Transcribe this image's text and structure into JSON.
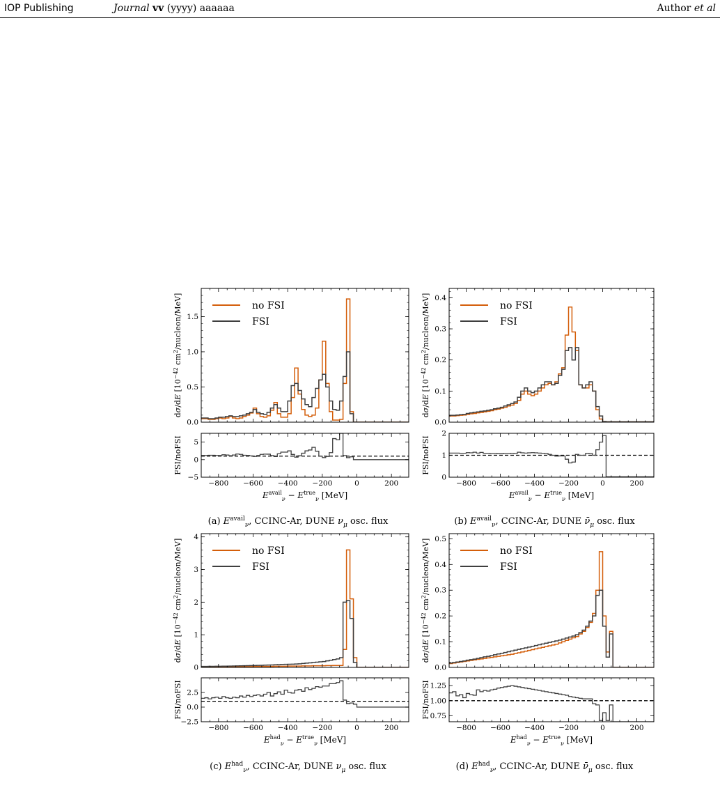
{
  "header": {
    "publisher": "IOP Publishing",
    "journal_name": "Journal",
    "journal_vol": "vv",
    "journal_rest": " (yyyy) aaaaaa",
    "author_name": "Author ",
    "author_etal": "et al"
  },
  "colors": {
    "nofsi": "#d45e0a",
    "fsi": "#3f3f3f",
    "ratio_line": "#000000"
  },
  "chart_data": [
    {
      "id": "a",
      "type": "line",
      "caption": "(a) E_ν^avail, CCINC-Ar, DUNE ν_μ osc. flux",
      "legend": [
        "no FSI",
        "FSI"
      ],
      "xlabel": "E_ν^avail − E_ν^true [MeV]",
      "ylabel": "dσ/dE [10^−42 cm²/nucleon/MeV]",
      "ratio_ylabel": "FSI/noFSI",
      "xlim": [
        -900,
        300
      ],
      "xticks": [
        -800,
        -600,
        -400,
        -200,
        0,
        200
      ],
      "ylim": [
        0,
        1.9
      ],
      "yticks": [
        0.0,
        0.5,
        1.0,
        1.5
      ],
      "ratio_ylim": [
        -5,
        7.5
      ],
      "ratio_yticks": [
        -5,
        0,
        5
      ],
      "bin_width": 20,
      "x": [
        -900,
        -880,
        -860,
        -840,
        -820,
        -800,
        -780,
        -760,
        -740,
        -720,
        -700,
        -680,
        -660,
        -640,
        -620,
        -600,
        -580,
        -560,
        -540,
        -520,
        -500,
        -480,
        -460,
        -440,
        -420,
        -400,
        -380,
        -360,
        -340,
        -320,
        -300,
        -280,
        -260,
        -240,
        -220,
        -200,
        -180,
        -160,
        -140,
        -120,
        -100,
        -80,
        -60,
        -40,
        -20,
        0,
        20,
        40,
        60,
        80,
        100,
        120,
        140,
        160,
        180,
        200,
        220,
        240,
        260,
        280
      ],
      "series": [
        {
          "name": "no FSI",
          "values": [
            0.05,
            0.05,
            0.04,
            0.04,
            0.05,
            0.06,
            0.05,
            0.06,
            0.08,
            0.06,
            0.05,
            0.06,
            0.08,
            0.1,
            0.13,
            0.2,
            0.12,
            0.08,
            0.07,
            0.09,
            0.17,
            0.28,
            0.12,
            0.07,
            0.07,
            0.12,
            0.35,
            0.77,
            0.4,
            0.18,
            0.1,
            0.08,
            0.1,
            0.2,
            0.6,
            1.15,
            0.55,
            0.15,
            0.03,
            0.03,
            0.04,
            0.55,
            1.75,
            0.15,
            0,
            0,
            0,
            0,
            0,
            0,
            0,
            0,
            0,
            0,
            0,
            0,
            0,
            0,
            0,
            0
          ]
        },
        {
          "name": "FSI",
          "values": [
            0.06,
            0.06,
            0.05,
            0.05,
            0.06,
            0.07,
            0.07,
            0.08,
            0.09,
            0.08,
            0.08,
            0.09,
            0.1,
            0.12,
            0.14,
            0.18,
            0.14,
            0.12,
            0.11,
            0.14,
            0.2,
            0.25,
            0.2,
            0.15,
            0.15,
            0.3,
            0.52,
            0.55,
            0.45,
            0.33,
            0.25,
            0.22,
            0.35,
            0.48,
            0.6,
            0.68,
            0.5,
            0.3,
            0.18,
            0.17,
            0.3,
            0.65,
            1.0,
            0.12,
            0,
            0,
            0,
            0,
            0,
            0,
            0,
            0,
            0,
            0,
            0,
            0,
            0,
            0,
            0,
            0
          ]
        }
      ],
      "ratio_values": [
        1.2,
        1.2,
        1.25,
        1.25,
        1.2,
        1.17,
        1.4,
        1.33,
        1.13,
        1.33,
        1.6,
        1.5,
        1.25,
        1.2,
        1.08,
        0.9,
        1.17,
        1.5,
        1.57,
        1.56,
        1.18,
        0.89,
        1.67,
        2.14,
        2.14,
        2.5,
        1.49,
        0.71,
        1.13,
        1.83,
        2.5,
        2.75,
        3.5,
        2.4,
        1,
        0.59,
        0.91,
        2,
        6,
        5.67,
        7.5,
        1.18,
        0.57,
        0.8,
        0,
        0,
        0,
        0,
        0,
        0,
        0,
        0,
        0,
        0,
        0,
        0,
        0,
        0,
        0,
        0
      ]
    },
    {
      "id": "b",
      "type": "line",
      "caption": "(b) E_ν^avail, CCINC-Ar, DUNE ν̄_μ osc. flux",
      "legend": [
        "no FSI",
        "FSI"
      ],
      "xlabel": "E_ν^avail − E_ν^true [MeV]",
      "ylabel": "dσ/dE [10^−42 cm²/nucleon/MeV]",
      "ratio_ylabel": "FSI/noFSI",
      "xlim": [
        -900,
        300
      ],
      "xticks": [
        -800,
        -600,
        -400,
        -200,
        0,
        200
      ],
      "ylim": [
        0,
        0.43
      ],
      "yticks": [
        0.0,
        0.1,
        0.2,
        0.3,
        0.4
      ],
      "ratio_ylim": [
        0,
        2
      ],
      "ratio_yticks": [
        0,
        1,
        2
      ],
      "bin_width": 20,
      "x": [
        -900,
        -880,
        -860,
        -840,
        -820,
        -800,
        -780,
        -760,
        -740,
        -720,
        -700,
        -680,
        -660,
        -640,
        -620,
        -600,
        -580,
        -560,
        -540,
        -520,
        -500,
        -480,
        -460,
        -440,
        -420,
        -400,
        -380,
        -360,
        -340,
        -320,
        -300,
        -280,
        -260,
        -240,
        -220,
        -200,
        -180,
        -160,
        -140,
        -120,
        -100,
        -80,
        -60,
        -40,
        -20,
        0,
        20,
        40,
        60,
        80,
        100,
        120,
        140,
        160,
        180,
        200,
        220,
        240,
        260,
        280
      ],
      "series": [
        {
          "name": "no FSI",
          "values": [
            0.02,
            0.02,
            0.021,
            0.022,
            0.023,
            0.025,
            0.027,
            0.028,
            0.03,
            0.031,
            0.033,
            0.035,
            0.037,
            0.04,
            0.042,
            0.045,
            0.048,
            0.052,
            0.055,
            0.06,
            0.07,
            0.09,
            0.1,
            0.09,
            0.085,
            0.09,
            0.1,
            0.11,
            0.12,
            0.125,
            0.12,
            0.13,
            0.155,
            0.175,
            0.28,
            0.37,
            0.29,
            0.23,
            0.12,
            0.11,
            0.11,
            0.12,
            0.1,
            0.04,
            0.01,
            0.002,
            0.001,
            0.001,
            0.001,
            0.001,
            0.001,
            0.001,
            0.001,
            0.001,
            0.001,
            0.001,
            0.001,
            0.001,
            0.001,
            0.001
          ]
        },
        {
          "name": "FSI",
          "values": [
            0.022,
            0.022,
            0.023,
            0.024,
            0.025,
            0.028,
            0.03,
            0.032,
            0.033,
            0.035,
            0.036,
            0.038,
            0.04,
            0.043,
            0.045,
            0.048,
            0.052,
            0.056,
            0.06,
            0.065,
            0.08,
            0.1,
            0.11,
            0.1,
            0.095,
            0.1,
            0.11,
            0.12,
            0.13,
            0.13,
            0.12,
            0.125,
            0.15,
            0.17,
            0.23,
            0.24,
            0.2,
            0.24,
            0.12,
            0.11,
            0.12,
            0.13,
            0.1,
            0.05,
            0.02,
            0.002,
            0.001,
            0.001,
            0.001,
            0.001,
            0.001,
            0.001,
            0.001,
            0.001,
            0.001,
            0.001,
            0.001,
            0.001,
            0.001,
            0.001
          ]
        }
      ],
      "ratio_values": [
        1.1,
        1.1,
        1.1,
        1.09,
        1.09,
        1.12,
        1.11,
        1.14,
        1.1,
        1.13,
        1.09,
        1.09,
        1.08,
        1.08,
        1.07,
        1.07,
        1.08,
        1.08,
        1.09,
        1.08,
        1.14,
        1.11,
        1.1,
        1.11,
        1.12,
        1.11,
        1.1,
        1.09,
        1.08,
        1.04,
        1,
        0.96,
        0.97,
        0.97,
        0.82,
        0.65,
        0.69,
        1.04,
        1,
        1,
        1.09,
        1.08,
        1,
        1.25,
        1.6,
        1.9,
        0.02,
        0.02,
        0.02,
        0.02,
        0.02,
        0.02,
        0.02,
        0.02,
        0.02,
        0.02,
        0.02,
        0.02,
        0.02,
        0.02
      ]
    },
    {
      "id": "c",
      "type": "line",
      "caption": "(c) E_ν^had, CCINC-Ar, DUNE ν_μ osc. flux",
      "legend": [
        "no FSI",
        "FSI"
      ],
      "xlabel": "E_ν^had − E_ν^true [MeV]",
      "ylabel": "dσ/dE [10^−42 cm²/nucleon/MeV]",
      "ratio_ylabel": "FSI/noFSI",
      "xlim": [
        -900,
        300
      ],
      "xticks": [
        -800,
        -600,
        -400,
        -200,
        0,
        200
      ],
      "ylim": [
        0,
        4.1
      ],
      "yticks": [
        0,
        1,
        2,
        3,
        4
      ],
      "ratio_ylim": [
        -2.5,
        5
      ],
      "ratio_yticks": [
        -2.5,
        0.0,
        2.5
      ],
      "bin_width": 20,
      "x": [
        -900,
        -880,
        -860,
        -840,
        -820,
        -800,
        -780,
        -760,
        -740,
        -720,
        -700,
        -680,
        -660,
        -640,
        -620,
        -600,
        -580,
        -560,
        -540,
        -520,
        -500,
        -480,
        -460,
        -440,
        -420,
        -400,
        -380,
        -360,
        -340,
        -320,
        -300,
        -280,
        -260,
        -240,
        -220,
        -200,
        -180,
        -160,
        -140,
        -120,
        -100,
        -80,
        -60,
        -40,
        -20,
        0,
        20,
        40,
        60,
        80,
        100,
        120,
        140,
        160,
        180,
        200,
        220,
        240,
        260,
        280
      ],
      "series": [
        {
          "name": "no FSI",
          "values": [
            0.02,
            0.02,
            0.02,
            0.02,
            0.02,
            0.02,
            0.02,
            0.02,
            0.02,
            0.02,
            0.025,
            0.025,
            0.025,
            0.025,
            0.025,
            0.03,
            0.03,
            0.03,
            0.03,
            0.03,
            0.03,
            0.035,
            0.035,
            0.035,
            0.035,
            0.04,
            0.04,
            0.04,
            0.04,
            0.045,
            0.045,
            0.045,
            0.05,
            0.05,
            0.05,
            0.05,
            0.055,
            0.055,
            0.06,
            0.06,
            0.06,
            0.55,
            3.6,
            2.1,
            0.3,
            0,
            0,
            0,
            0,
            0,
            0,
            0,
            0,
            0,
            0,
            0,
            0,
            0,
            0,
            0
          ]
        },
        {
          "name": "FSI",
          "values": [
            0.03,
            0.03,
            0.032,
            0.033,
            0.034,
            0.035,
            0.037,
            0.038,
            0.04,
            0.042,
            0.045,
            0.048,
            0.05,
            0.053,
            0.056,
            0.06,
            0.062,
            0.065,
            0.07,
            0.073,
            0.076,
            0.08,
            0.085,
            0.09,
            0.093,
            0.096,
            0.1,
            0.105,
            0.11,
            0.12,
            0.13,
            0.14,
            0.15,
            0.16,
            0.17,
            0.18,
            0.2,
            0.22,
            0.24,
            0.26,
            0.3,
            2.0,
            2.05,
            1.5,
            0.15,
            0,
            0,
            0,
            0,
            0,
            0,
            0,
            0,
            0,
            0,
            0,
            0,
            0,
            0,
            0
          ]
        }
      ],
      "ratio_values": [
        1.5,
        1.6,
        1.4,
        1.6,
        1.7,
        1.5,
        1.8,
        1.6,
        1.5,
        1.7,
        1.6,
        1.9,
        1.7,
        2.0,
        1.8,
        2.0,
        2.1,
        1.9,
        2.2,
        2.5,
        1.9,
        2.3,
        2.6,
        2.2,
        2.9,
        2.5,
        2.4,
        2.9,
        3.0,
        2.7,
        3.3,
        3.0,
        3.2,
        3.5,
        3.4,
        3.6,
        3.6,
        4.0,
        4.0,
        4.2,
        4.5,
        1.2,
        0.6,
        0.7,
        0.5,
        0,
        0,
        0,
        0,
        0,
        0,
        0,
        0,
        0,
        0,
        0,
        0,
        0,
        0,
        0
      ]
    },
    {
      "id": "d",
      "type": "line",
      "caption": "(d) E_ν^had, CCINC-Ar, DUNE ν̄_μ osc. flux",
      "legend": [
        "no FSI",
        "FSI"
      ],
      "xlabel": "E_ν^had − E_ν^true [MeV]",
      "ylabel": "dσ/dE [10^−42 cm²/nucleon/MeV]",
      "ratio_ylabel": "FSI/noFSI",
      "xlim": [
        -900,
        300
      ],
      "xticks": [
        -800,
        -600,
        -400,
        -200,
        0,
        200
      ],
      "ylim": [
        0,
        0.52
      ],
      "yticks": [
        0.0,
        0.1,
        0.2,
        0.3,
        0.4,
        0.5
      ],
      "ratio_ylim": [
        0.65,
        1.38
      ],
      "ratio_yticks": [
        0.75,
        1.0,
        1.25
      ],
      "bin_width": 20,
      "x": [
        -900,
        -880,
        -860,
        -840,
        -820,
        -800,
        -780,
        -760,
        -740,
        -720,
        -700,
        -680,
        -660,
        -640,
        -620,
        -600,
        -580,
        -560,
        -540,
        -520,
        -500,
        -480,
        -460,
        -440,
        -420,
        -400,
        -380,
        -360,
        -340,
        -320,
        -300,
        -280,
        -260,
        -240,
        -220,
        -200,
        -180,
        -160,
        -140,
        -120,
        -100,
        -80,
        -60,
        -40,
        -20,
        0,
        20,
        40,
        60,
        80,
        100,
        120,
        140,
        160,
        180,
        200,
        220,
        240,
        260,
        280
      ],
      "series": [
        {
          "name": "no FSI",
          "values": [
            0.015,
            0.017,
            0.019,
            0.021,
            0.023,
            0.025,
            0.027,
            0.029,
            0.031,
            0.033,
            0.035,
            0.037,
            0.039,
            0.041,
            0.043,
            0.045,
            0.047,
            0.049,
            0.051,
            0.054,
            0.057,
            0.06,
            0.063,
            0.066,
            0.069,
            0.072,
            0.075,
            0.078,
            0.081,
            0.084,
            0.087,
            0.09,
            0.095,
            0.1,
            0.105,
            0.11,
            0.115,
            0.12,
            0.13,
            0.14,
            0.155,
            0.175,
            0.21,
            0.3,
            0.45,
            0.2,
            0.06,
            0.14,
            0,
            0,
            0,
            0,
            0,
            0,
            0,
            0,
            0,
            0,
            0,
            0
          ]
        },
        {
          "name": "FSI",
          "values": [
            0.017,
            0.019,
            0.021,
            0.023,
            0.025,
            0.028,
            0.03,
            0.032,
            0.035,
            0.038,
            0.041,
            0.043,
            0.046,
            0.049,
            0.052,
            0.055,
            0.058,
            0.061,
            0.064,
            0.067,
            0.07,
            0.073,
            0.076,
            0.079,
            0.082,
            0.085,
            0.088,
            0.091,
            0.094,
            0.097,
            0.1,
            0.103,
            0.106,
            0.11,
            0.114,
            0.118,
            0.122,
            0.127,
            0.135,
            0.145,
            0.16,
            0.18,
            0.2,
            0.28,
            0.3,
            0.16,
            0.04,
            0.13,
            0,
            0,
            0,
            0,
            0,
            0,
            0,
            0,
            0,
            0,
            0,
            0
          ]
        }
      ],
      "ratio_values": [
        1.13,
        1.15,
        1.08,
        1.1,
        1.05,
        1.12,
        1.1,
        1.09,
        1.18,
        1.15,
        1.17,
        1.16,
        1.18,
        1.19,
        1.21,
        1.22,
        1.23,
        1.24,
        1.25,
        1.24,
        1.23,
        1.22,
        1.21,
        1.2,
        1.19,
        1.18,
        1.17,
        1.16,
        1.15,
        1.14,
        1.13,
        1.12,
        1.11,
        1.1,
        1.09,
        1.07,
        1.06,
        1.05,
        1.04,
        1.03,
        1.03,
        1.03,
        0.95,
        0.93,
        0.67,
        0.8,
        0.67,
        0.93,
        0,
        0,
        0,
        0,
        0,
        0,
        0,
        0,
        0,
        0,
        0,
        0
      ]
    }
  ]
}
